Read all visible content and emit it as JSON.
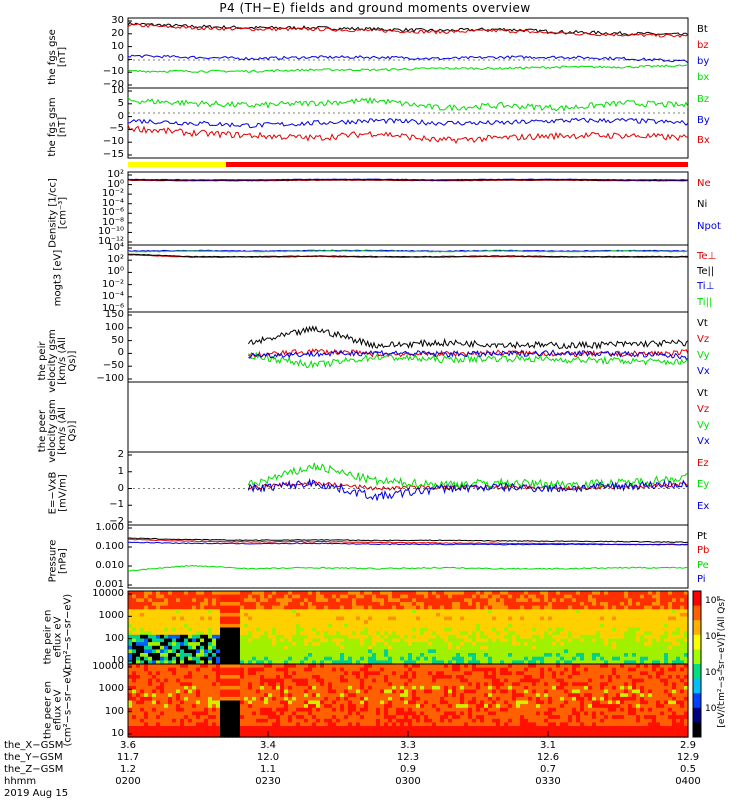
{
  "title": "P4 (TH−E) fields and ground moments overview",
  "date_label": "2019 Aug 15",
  "colors": {
    "black": "#000000",
    "red": "#e00000",
    "green": "#00dd00",
    "blue": "#0000e0",
    "yellow": "#ffff00",
    "bar_red": "#ff0000"
  },
  "ephemeris": {
    "rows": [
      {
        "label": "the_X−GSM",
        "values": [
          "3.6",
          "3.4",
          "3.3",
          "3.1",
          "2.9"
        ]
      },
      {
        "label": "the_Y−GSM",
        "values": [
          "11.7",
          "12.0",
          "12.3",
          "12.6",
          "12.9"
        ]
      },
      {
        "label": "the_Z−GSM",
        "values": [
          "1.2",
          "1.1",
          "0.9",
          "0.7",
          "0.5"
        ]
      },
      {
        "label": "hhmm",
        "values": [
          "0200",
          "0230",
          "0300",
          "0330",
          "0400"
        ]
      }
    ]
  },
  "colorbar": {
    "ticks": [
      "10⁸",
      "10⁶",
      "10⁴",
      "10²"
    ],
    "label": "[eV/(cm²−s−sr−eV)] (All Qs)"
  },
  "chart_data": [
    {
      "type": "line",
      "ylabel": "the fgs gse [nT]",
      "yticks": [
        "30",
        "20",
        "10",
        "0",
        "−10",
        "−20"
      ],
      "ylim": [
        -20,
        30
      ],
      "legend": [
        "Bt",
        "bz",
        "by",
        "bx"
      ],
      "series": [
        {
          "name": "Bt",
          "color": "black",
          "base": [
            26,
            24,
            23,
            23,
            22,
            21,
            22,
            20,
            19,
            18
          ],
          "noise": 1.2
        },
        {
          "name": "bz",
          "color": "red",
          "base": [
            25,
            23,
            22,
            22,
            21,
            20,
            21,
            19,
            18,
            17
          ],
          "noise": 1.2
        },
        {
          "name": "by",
          "color": "blue",
          "base": [
            3,
            2,
            1,
            2,
            2,
            1,
            2,
            2,
            1,
            -1
          ],
          "noise": 1.0
        },
        {
          "name": "bx",
          "color": "green",
          "base": [
            -8,
            -8,
            -8,
            -7,
            -7,
            -6,
            -6,
            -5,
            -5,
            -4
          ],
          "noise": 0.8
        }
      ]
    },
    {
      "type": "line",
      "ylabel": "the fgs gsm [nT]",
      "yticks": [
        "10",
        "5",
        "0",
        "−5",
        "−10",
        "−15"
      ],
      "ylim": [
        -18,
        10
      ],
      "legend": [
        "Bz",
        "By",
        "Bx"
      ],
      "series": [
        {
          "name": "Bz",
          "color": "green",
          "base": [
            5,
            4,
            3,
            4,
            5,
            2,
            3,
            2,
            4,
            3
          ],
          "noise": 1.2
        },
        {
          "name": "By",
          "color": "blue",
          "base": [
            -3,
            -4,
            -5,
            -4,
            -3,
            -4,
            -4,
            -3,
            -3,
            -4
          ],
          "noise": 1.0
        },
        {
          "name": "Bx",
          "color": "red",
          "base": [
            -6,
            -8,
            -9,
            -10,
            -8,
            -11,
            -10,
            -9,
            -9,
            -10
          ],
          "noise": 1.3
        }
      ]
    },
    {
      "type": "line",
      "ylabel": "Density [1/cc] [cm⁻³]",
      "yticks": [
        "10²",
        "10⁰",
        "10⁻²",
        "10⁻⁴",
        "10⁻⁶",
        "10⁻⁸",
        "10⁻¹⁰",
        "10⁻¹²"
      ],
      "ylim": [
        -13,
        2
      ],
      "log": true,
      "legend": [
        "Ne",
        "Ni",
        "Npot"
      ],
      "series": [
        {
          "name": "Ne",
          "color": "red",
          "base": [
            0.3,
            0.2,
            0.2,
            0.3,
            0.3,
            0.2,
            0.3,
            0.3,
            0.2,
            0.2
          ],
          "noise": 0.05
        },
        {
          "name": "Ni",
          "color": "black",
          "base": [
            0.4,
            0.3,
            0.3,
            0.4,
            0.4,
            0.3,
            0.4,
            0.4,
            0.3,
            0.3
          ],
          "noise": 0.05
        },
        {
          "name": "Npot",
          "color": "blue",
          "base": [
            0.5,
            0.4,
            0.4,
            0.5,
            0.5,
            0.4,
            0.5,
            0.5,
            0.4,
            0.4
          ],
          "noise": 0.05
        }
      ]
    },
    {
      "type": "line",
      "ylabel": "mogt3 [eV]",
      "yticks": [
        "10⁴",
        "10²",
        "10⁰",
        "10⁻²",
        "10⁻⁴",
        "10⁻⁶"
      ],
      "ylim": [
        -7,
        4
      ],
      "log": true,
      "legend": [
        "Te⊥",
        "Te||",
        "Ti⊥",
        "Ti||"
      ],
      "series": [
        {
          "name": "Te⊥",
          "color": "red",
          "base": [
            2.4,
            2.0,
            2.0,
            2.1,
            2.0,
            2.0,
            2.1,
            2.0,
            2.0,
            2.0
          ],
          "noise": 0.05
        },
        {
          "name": "Te||",
          "color": "black",
          "base": [
            2.5,
            2.1,
            2.1,
            2.2,
            2.1,
            2.1,
            2.2,
            2.1,
            2.1,
            2.1
          ],
          "noise": 0.05
        },
        {
          "name": "Ti⊥",
          "color": "blue",
          "base": [
            3.0,
            3.1,
            3.0,
            3.1,
            3.1,
            3.0,
            3.1,
            3.0,
            3.1,
            3.0
          ],
          "noise": 0.06
        },
        {
          "name": "Ti||",
          "color": "green",
          "base": [
            2.9,
            3.0,
            2.9,
            3.0,
            3.0,
            2.9,
            3.0,
            2.9,
            3.0,
            2.9
          ],
          "noise": 0.06
        }
      ]
    },
    {
      "type": "line",
      "ylabel": "the peir velocity gsm [km/s (All Qs)]",
      "yticks": [
        "150",
        "100",
        "50",
        "0",
        "−50",
        "−100"
      ],
      "ylim": [
        -100,
        150
      ],
      "legend": [
        "Vt",
        "Vz",
        "Vy",
        "Vx"
      ],
      "start": 0.215,
      "series": [
        {
          "name": "Vt",
          "color": "black",
          "base": [
            30,
            35,
            40,
            90,
            30,
            40,
            35,
            30,
            35,
            40
          ],
          "noise": 12
        },
        {
          "name": "Vz",
          "color": "red",
          "base": [
            0,
            5,
            -5,
            10,
            0,
            0,
            5,
            0,
            0,
            5
          ],
          "noise": 10
        },
        {
          "name": "Vy",
          "color": "green",
          "base": [
            -10,
            -20,
            -5,
            -40,
            -10,
            -20,
            -15,
            -20,
            -25,
            -30
          ],
          "noise": 12
        },
        {
          "name": "Vx",
          "color": "blue",
          "base": [
            0,
            5,
            -5,
            0,
            5,
            0,
            0,
            5,
            0,
            -10
          ],
          "noise": 10
        }
      ]
    },
    {
      "type": "line",
      "ylabel": "the peer velocity gsm [km/s (All Qs)]",
      "yticks": [],
      "ylim": [
        -1,
        1
      ],
      "legend": [
        "Vt",
        "Vz",
        "Vy",
        "Vx"
      ],
      "series": []
    },
    {
      "type": "line",
      "ylabel": "E=−VxB [mV/m]",
      "yticks": [
        "2",
        "1",
        "0",
        "−1",
        "−2"
      ],
      "ylim": [
        -2.6,
        2.6
      ],
      "legend": [
        "Ez",
        "Ey",
        "Ex"
      ],
      "start": 0.215,
      "series": [
        {
          "name": "Ez",
          "color": "red",
          "base": [
            0,
            0,
            0.1,
            0.4,
            0,
            0.1,
            0.1,
            0,
            0.1,
            0.3
          ],
          "noise": 0.15
        },
        {
          "name": "Ey",
          "color": "green",
          "base": [
            0.3,
            0.4,
            0.3,
            1.6,
            0.5,
            0.3,
            0.4,
            0.3,
            0.4,
            0.8
          ],
          "noise": 0.3
        },
        {
          "name": "Ex",
          "color": "blue",
          "base": [
            0.2,
            0.1,
            0,
            0.4,
            -0.6,
            0,
            0.1,
            0,
            0.2,
            0.3
          ],
          "noise": 0.3
        }
      ]
    },
    {
      "type": "line",
      "ylabel": "Pressure [nPa]",
      "yticks": [
        "1.000",
        "0.100",
        "0.010",
        "0.001"
      ],
      "ylim": [
        -3,
        0.1
      ],
      "log": true,
      "legend": [
        "Pt",
        "Pb",
        "Pe",
        "Pi"
      ],
      "series": [
        {
          "name": "Pt",
          "color": "black",
          "base": [
            -0.55,
            -0.62,
            -0.65,
            -0.63,
            -0.66,
            -0.65,
            -0.68,
            -0.7,
            -0.72,
            -0.75
          ],
          "noise": 0.02
        },
        {
          "name": "Pb",
          "color": "red",
          "base": [
            -0.6,
            -0.7,
            -0.73,
            -0.72,
            -0.75,
            -0.78,
            -0.8,
            -0.82,
            -0.85,
            -0.88
          ],
          "noise": 0.02
        },
        {
          "name": "Pe",
          "color": "green",
          "base": [
            -2.15,
            -1.9,
            -2.05,
            -2.0,
            -2.05,
            -2.0,
            -2.05,
            -2.05,
            -2.0,
            -2.0
          ],
          "noise": 0.03
        },
        {
          "name": "Pi",
          "color": "blue",
          "base": [
            -0.75,
            -0.8,
            -0.82,
            -0.8,
            -0.84,
            -0.85,
            -0.86,
            -0.85,
            -0.86,
            -0.85
          ],
          "noise": 0.02
        }
      ]
    },
    {
      "type": "heatmap",
      "ylabel": "the peir en eflux eV (cm²−s−sr−eV)",
      "yticks": [
        "10000",
        "1000",
        "100",
        "10"
      ],
      "ylim": [
        5,
        25000
      ]
    },
    {
      "type": "heatmap",
      "ylabel": "the peer en eflux eV (cm²−s−sr−eV)",
      "yticks": [
        "10000",
        "1000",
        "100",
        "10"
      ],
      "ylim": [
        5,
        25000
      ]
    }
  ]
}
